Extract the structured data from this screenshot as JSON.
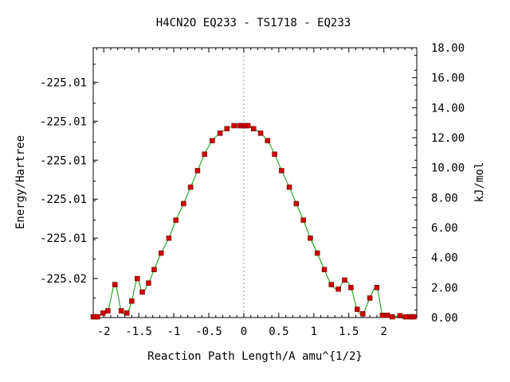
{
  "chart_data": {
    "type": "line",
    "title": "H4CN2O   EQ233 - TS1718 - EQ233",
    "xlabel": "Reaction Path Length/A amu^{1/2}",
    "ylabel": "Energy/Hartree",
    "y2label": "kJ/mol",
    "xlim": [
      -2.15,
      2.47
    ],
    "ylim2": [
      0,
      18
    ],
    "x_ticks": [
      "-2",
      "-1.5",
      "-1",
      "-0.5",
      "0",
      "0.5",
      "1",
      "1.5",
      "2"
    ],
    "x_tick_values": [
      -2,
      -1.5,
      -1,
      -0.5,
      0,
      0.5,
      1,
      1.5,
      2
    ],
    "y_ticks": [
      "-225.01",
      "-225.01",
      "-225.01",
      "-225.01",
      "-225.01",
      "-225.02"
    ],
    "y_tick_values_kjmol": [
      15.7,
      13.1,
      10.5,
      7.9,
      5.3,
      2.6
    ],
    "y2_ticks": [
      "18.00",
      "16.00",
      "14.00",
      "12.00",
      "10.00",
      "8.00",
      "6.00",
      "4.00",
      "2.00",
      "0.00"
    ],
    "y2_tick_values": [
      18,
      16,
      14,
      12,
      10,
      8,
      6,
      4,
      2,
      0
    ],
    "ts_marker_x": 0,
    "colors": {
      "line": "#00a000",
      "points": "#cc0000",
      "marker": "#999999"
    },
    "series": [
      {
        "x": [
          -2.15,
          -2.12,
          -2.09,
          -2.01,
          -1.94,
          -1.84,
          -1.75,
          -1.67,
          -1.6,
          -1.52,
          -1.45,
          -1.36,
          -1.28,
          -1.18,
          -1.07,
          -0.97,
          -0.86,
          -0.76,
          -0.66,
          -0.56,
          -0.45,
          -0.34,
          -0.24,
          -0.14,
          -0.06,
          -0.03,
          0.0,
          0.03,
          0.06,
          0.14,
          0.24,
          0.34,
          0.44,
          0.54,
          0.65,
          0.75,
          0.85,
          0.95,
          1.05,
          1.15,
          1.25,
          1.35,
          1.44,
          1.53,
          1.62,
          1.7,
          1.8,
          1.9,
          1.98,
          2.05,
          2.12,
          2.23,
          2.31,
          2.37,
          2.4,
          2.43
        ],
        "y": [
          0.05,
          0.05,
          0.05,
          0.3,
          0.45,
          2.2,
          0.45,
          0.3,
          1.1,
          2.6,
          1.7,
          2.3,
          3.2,
          4.3,
          5.3,
          6.5,
          7.6,
          8.7,
          9.8,
          10.9,
          11.8,
          12.3,
          12.6,
          12.8,
          12.8,
          12.8,
          12.8,
          12.8,
          12.8,
          12.6,
          12.3,
          11.8,
          10.9,
          9.8,
          8.7,
          7.6,
          6.5,
          5.3,
          4.3,
          3.2,
          2.2,
          1.9,
          2.5,
          2.0,
          0.55,
          0.25,
          1.3,
          2.0,
          0.15,
          0.15,
          0.05,
          0.12,
          0.05,
          0.05,
          0.05,
          0.05
        ]
      }
    ]
  }
}
